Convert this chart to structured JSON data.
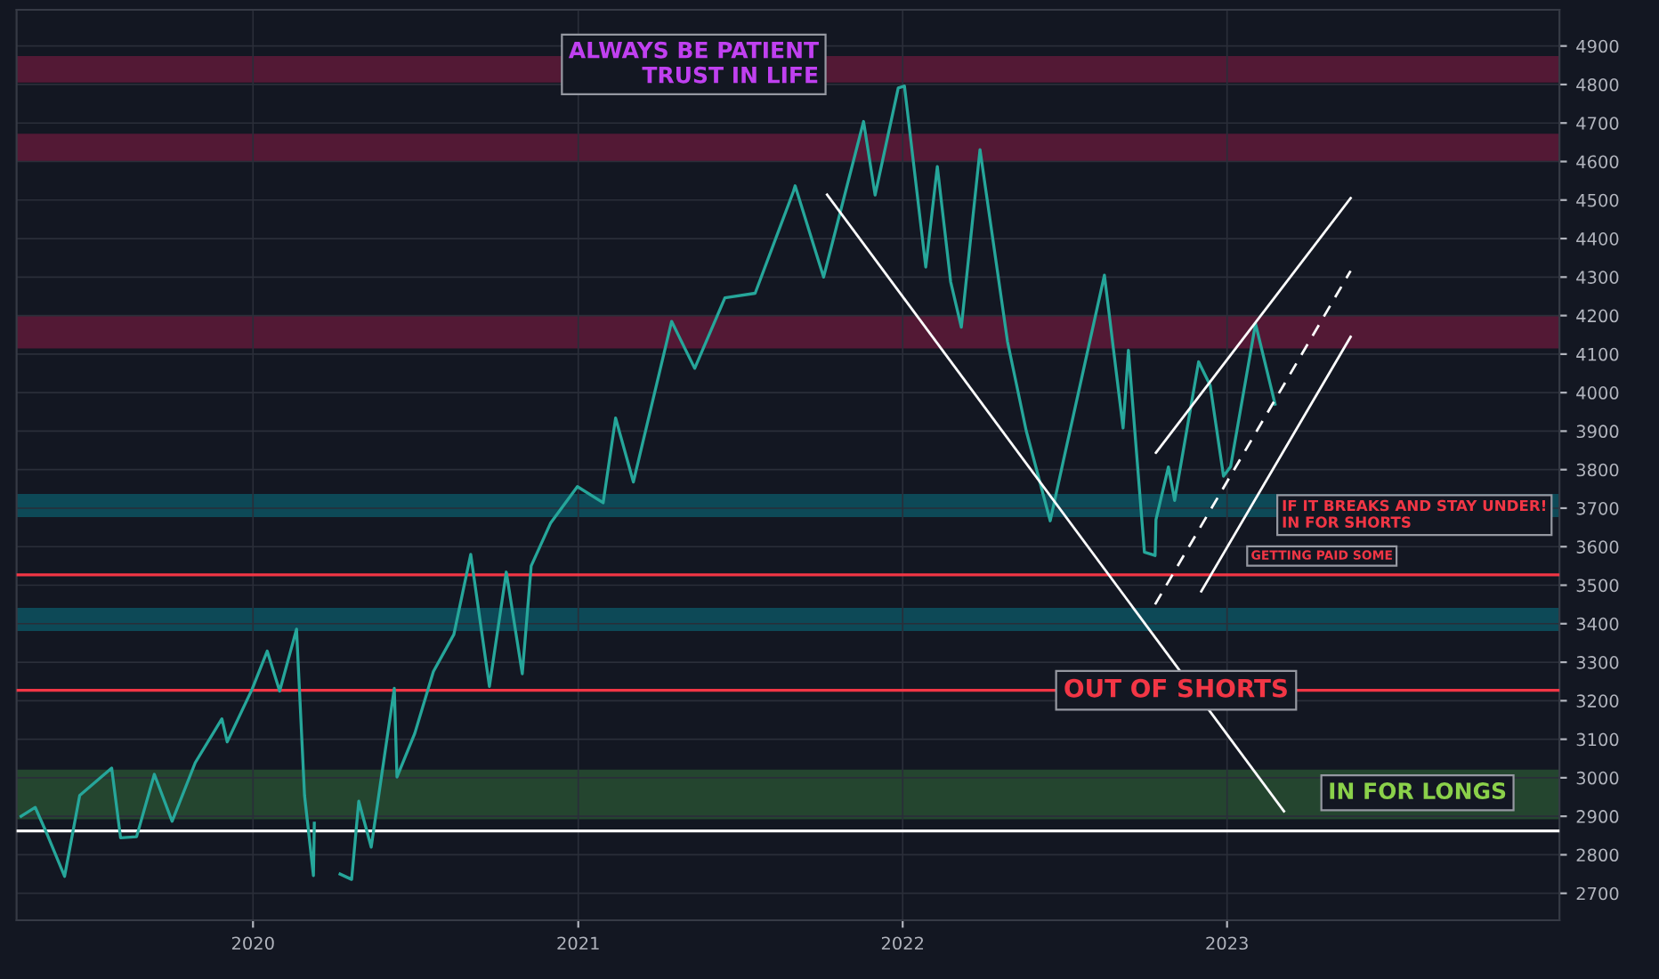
{
  "chart_data": {
    "type": "line",
    "series": [
      {
        "color": "#26a69a",
        "x": [
          "2019-04-15",
          "2019-05-01",
          "2019-05-15",
          "2019-06-03",
          "2019-06-20",
          "2019-07-26",
          "2019-08-05",
          "2019-08-23",
          "2019-09-12",
          "2019-10-02",
          "2019-10-28",
          "2019-11-27",
          "2019-12-03",
          "2019-12-31",
          "2020-01-17",
          "2020-01-31",
          "2020-02-19",
          "2020-02-28",
          "2020-03-09",
          "2020-03-10",
          "2020-03-12",
          "2020-04-08",
          "2020-04-21",
          "2020-04-29",
          "2020-05-13",
          "2020-06-08",
          "2020-06-11",
          "2020-07-01",
          "2020-07-22",
          "2020-08-14",
          "2020-09-02",
          "2020-09-23",
          "2020-10-12",
          "2020-10-30",
          "2020-11-09",
          "2020-12-01",
          "2020-12-31",
          "2021-01-29",
          "2021-02-12",
          "2021-03-04",
          "2021-04-16",
          "2021-05-12",
          "2021-06-15",
          "2021-07-19",
          "2021-08-31",
          "2021-09-02",
          "2021-10-04",
          "2021-11-18",
          "2021-12-01",
          "2021-12-27",
          "2022-01-03",
          "2022-01-27",
          "2022-02-09",
          "2022-02-24",
          "2022-03-08",
          "2022-03-29",
          "2022-04-29",
          "2022-05-20",
          "2022-06-16",
          "2022-07-01",
          "2022-08-16",
          "2022-09-06",
          "2022-09-12",
          "2022-09-30",
          "2022-10-12",
          "2022-10-13",
          "2022-10-27",
          "2022-11-03",
          "2022-11-30",
          "2022-12-13",
          "2022-12-28",
          "2023-01-05",
          "2023-02-02",
          "2023-02-24"
        ],
        "values": [
          2900,
          2923,
          2850,
          2744,
          2954,
          3025,
          2844,
          2847,
          3009,
          2887,
          3039,
          3153,
          3093,
          3230,
          3329,
          3225,
          3386,
          2954,
          2746,
          2882,
          null,
          2750,
          2736,
          2939,
          2820,
          3232,
          3002,
          3115,
          3276,
          3372,
          3580,
          3237,
          3534,
          3270,
          3550,
          3662,
          3756,
          3714,
          3934,
          3768,
          4185,
          4063,
          4246,
          4258,
          4522,
          4537,
          4300,
          4704,
          4513,
          4791,
          4796,
          4326,
          4587,
          4288,
          4170,
          4631,
          4132,
          3901,
          3667,
          3825,
          4305,
          3908,
          4110,
          3586,
          3577,
          3670,
          3807,
          3720,
          4080,
          4019,
          3783,
          3808,
          4179,
          3970
        ]
      },
      {
        "type": "line",
        "color": "#ffffff",
        "x": [
          "2021-10-08",
          "2023-03-06"
        ],
        "values": [
          4514,
          2913
        ]
      },
      {
        "type": "line",
        "color": "#ffffff",
        "x": [
          "2022-10-13",
          "2023-05-20"
        ],
        "values": [
          3844,
          4505
        ]
      },
      {
        "type": "line",
        "color": "#ffffff",
        "x": [
          "2022-12-03",
          "2023-05-20"
        ],
        "values": [
          3484,
          4145
        ]
      },
      {
        "type": "line",
        "color": "#ffffff",
        "line_style": "dashed",
        "x": [
          "2022-10-12",
          "2023-05-20"
        ],
        "values": [
          3450,
          4316
        ]
      }
    ],
    "xlim": [
      "2019-04-10",
      "2024-01-10"
    ],
    "xticks": [
      {
        "value": "2020-01-01",
        "label": "2020"
      },
      {
        "value": "2021-01-01",
        "label": "2021"
      },
      {
        "value": "2022-01-01",
        "label": "2022"
      },
      {
        "value": "2023-01-01",
        "label": "2023"
      }
    ],
    "ylim": [
      2630,
      4994
    ],
    "yticks": [
      2700,
      2800,
      2900,
      3000,
      3100,
      3200,
      3300,
      3400,
      3500,
      3600,
      3700,
      3800,
      3900,
      4000,
      4100,
      4200,
      4300,
      4400,
      4500,
      4600,
      4700,
      4800,
      4900
    ],
    "grid": true,
    "bands": [
      {
        "axis": "y",
        "from": 4805,
        "to": 4874,
        "color": "#e91e63"
      },
      {
        "axis": "y",
        "from": 4599,
        "to": 4672,
        "color": "#e91e63"
      },
      {
        "axis": "y",
        "from": 4115,
        "to": 4200,
        "color": "#e91e63"
      },
      {
        "axis": "y",
        "from": 3677,
        "to": 3737,
        "color": "#00bcd4"
      },
      {
        "axis": "y",
        "from": 3381,
        "to": 3441,
        "color": "#00bcd4"
      },
      {
        "axis": "y",
        "from": 2892,
        "to": 3021,
        "color": "#4caf50"
      }
    ],
    "ref_lines": [
      {
        "axis": "y",
        "value": 3527,
        "color": "#f23645"
      },
      {
        "axis": "y",
        "value": 3227,
        "color": "#f23645"
      },
      {
        "axis": "y",
        "value": 2862,
        "color": "#ffffff"
      }
    ],
    "annotations": [
      "ALWAYS BE PATIENT\nTRUST IN LIFE",
      "IF IT BREAKS AND STAY UNDER!\nIN FOR SHORTS",
      "GETTING PAID SOME",
      {
        "text": "OUT OF SHORTS",
        "x": "2022-07-01",
        "y": 3227
      },
      "IN FOR LONGS"
    ]
  }
}
